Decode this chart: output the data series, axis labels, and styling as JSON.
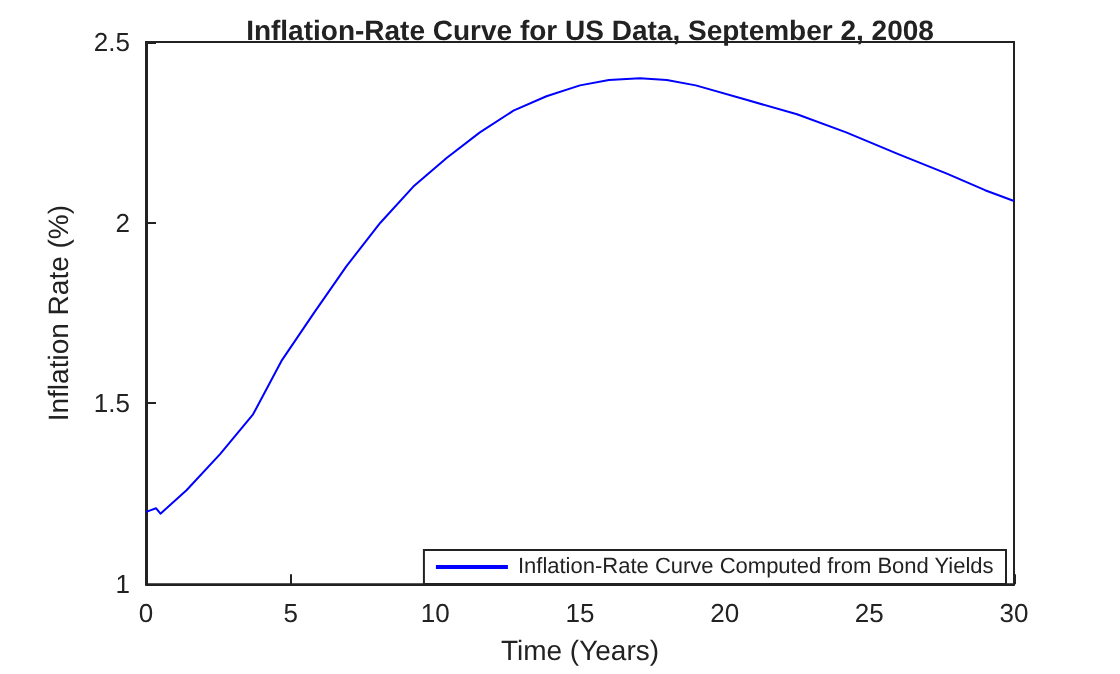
{
  "chart_data": {
    "type": "line",
    "title": "Inflation-Rate Curve for US Data, September 2, 2008",
    "xlabel": "Time (Years)",
    "ylabel": "Inflation Rate (%)",
    "series": [
      {
        "name": "Inflation-Rate Curve Computed from Bond Yields",
        "color": "#0000ff",
        "x": [
          0,
          0.35,
          0.5,
          1.4,
          2.56,
          3.7,
          4.7,
          5.8,
          6.93,
          8.1,
          9.24,
          10.4,
          11.54,
          12.7,
          13.84,
          15,
          16,
          17.07,
          18,
          19,
          20.75,
          22.5,
          24.2,
          26,
          27.7,
          29,
          30
        ],
        "values": [
          1.2,
          1.21,
          1.195,
          1.26,
          1.36,
          1.47,
          1.62,
          1.75,
          1.88,
          2.0,
          2.1,
          2.18,
          2.25,
          2.31,
          2.35,
          2.38,
          2.395,
          2.4,
          2.395,
          2.38,
          2.34,
          2.3,
          2.25,
          2.19,
          2.135,
          2.09,
          2.06
        ]
      }
    ],
    "xlim": [
      0,
      30
    ],
    "xticks": [
      0,
      5,
      10,
      15,
      20,
      25,
      30
    ],
    "ylim": [
      1,
      2.5
    ],
    "yticks": [
      1,
      1.5,
      2,
      2.5
    ],
    "grid": false,
    "legend": "bottom right",
    "marker": "none",
    "line_style": "solid"
  }
}
